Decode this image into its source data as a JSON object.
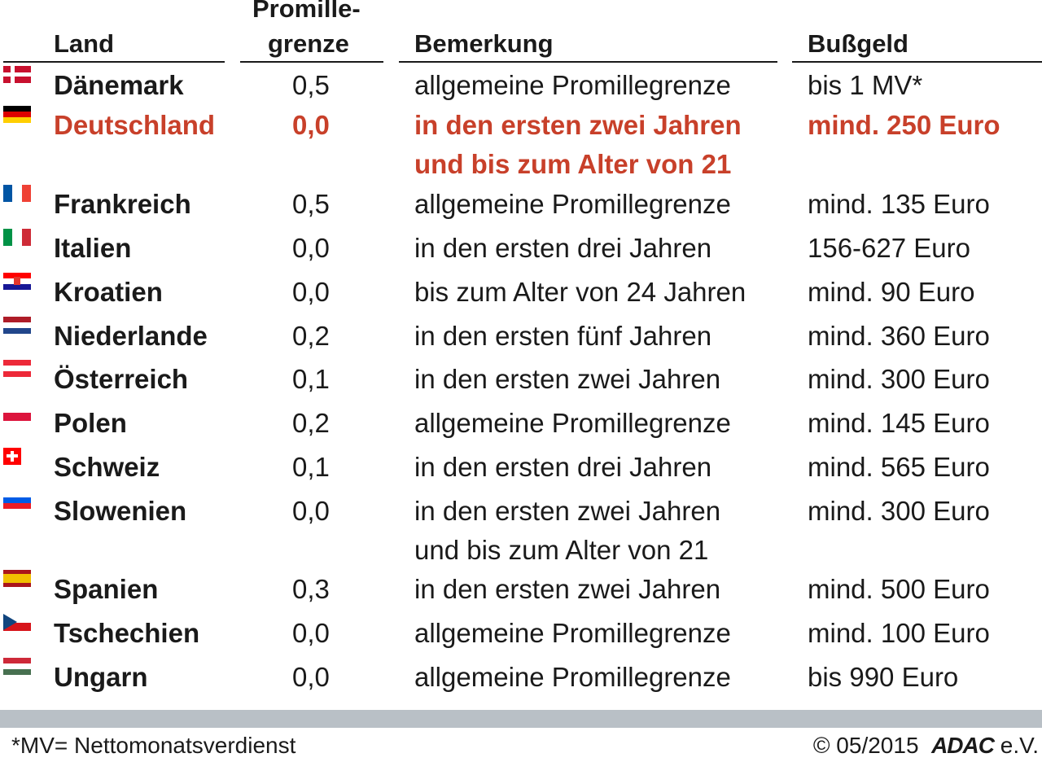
{
  "headers": {
    "land": "Land",
    "promille_line1": "Promille-",
    "promille_line2": "grenze",
    "bemerkung": "Bemerkung",
    "bussgeld": "Bußgeld"
  },
  "rows": [
    {
      "land": "Dänemark",
      "flag": "denmark-flag-icon",
      "promille": "0,5",
      "bemerkung": [
        "allgemeine Promillegrenze"
      ],
      "bussgeld": "bis 1 MV*"
    },
    {
      "land": "Deutschland",
      "flag": "germany-flag-icon",
      "promille": "0,0",
      "bemerkung": [
        "in den ersten zwei Jahren",
        "und bis zum Alter von 21"
      ],
      "bussgeld": "mind. 250 Euro",
      "highlight": true
    },
    {
      "land": "Frankreich",
      "flag": "france-flag-icon",
      "promille": "0,5",
      "bemerkung": [
        "allgemeine Promillegrenze"
      ],
      "bussgeld": "mind. 135 Euro"
    },
    {
      "land": "Italien",
      "flag": "italy-flag-icon",
      "promille": "0,0",
      "bemerkung": [
        "in den ersten drei Jahren"
      ],
      "bussgeld": "156-627 Euro"
    },
    {
      "land": "Kroatien",
      "flag": "croatia-flag-icon",
      "promille": "0,0",
      "bemerkung": [
        "bis zum Alter von 24 Jahren"
      ],
      "bussgeld": "mind. 90 Euro"
    },
    {
      "land": "Niederlande",
      "flag": "netherlands-flag-icon",
      "promille": "0,2",
      "bemerkung": [
        "in den ersten fünf Jahren"
      ],
      "bussgeld": "mind. 360 Euro"
    },
    {
      "land": "Österreich",
      "flag": "austria-flag-icon",
      "promille": "0,1",
      "bemerkung": [
        "in den ersten zwei Jahren"
      ],
      "bussgeld": "mind. 300 Euro"
    },
    {
      "land": "Polen",
      "flag": "poland-flag-icon",
      "promille": "0,2",
      "bemerkung": [
        "allgemeine Promillegrenze"
      ],
      "bussgeld": "mind. 145 Euro"
    },
    {
      "land": "Schweiz",
      "flag": "switzerland-flag-icon",
      "promille": "0,1",
      "bemerkung": [
        "in den ersten drei Jahren"
      ],
      "bussgeld": "mind. 565 Euro"
    },
    {
      "land": "Slowenien",
      "flag": "slovenia-flag-icon",
      "promille": "0,0",
      "bemerkung": [
        "in den ersten zwei Jahren",
        "und bis zum Alter von 21"
      ],
      "bussgeld": "mind. 300 Euro"
    },
    {
      "land": "Spanien",
      "flag": "spain-flag-icon",
      "promille": "0,3",
      "bemerkung": [
        "in den ersten zwei Jahren"
      ],
      "bussgeld": "mind. 500 Euro"
    },
    {
      "land": "Tschechien",
      "flag": "czechia-flag-icon",
      "promille": "0,0",
      "bemerkung": [
        "allgemeine Promillegrenze"
      ],
      "bussgeld": "mind. 100 Euro"
    },
    {
      "land": "Ungarn",
      "flag": "hungary-flag-icon",
      "promille": "0,0",
      "bemerkung": [
        "allgemeine Promillegrenze"
      ],
      "bussgeld": "bis 990 Euro"
    }
  ],
  "colors": {
    "highlight": "#c8402a",
    "text": "#1a1a1a",
    "footer_bar": "#b9c0c6"
  },
  "footer": {
    "note": "*MV= Nettomonatsverdienst",
    "copyright": "© 05/2015",
    "brand": "ADAC",
    "brand_suffix": "e.V."
  }
}
